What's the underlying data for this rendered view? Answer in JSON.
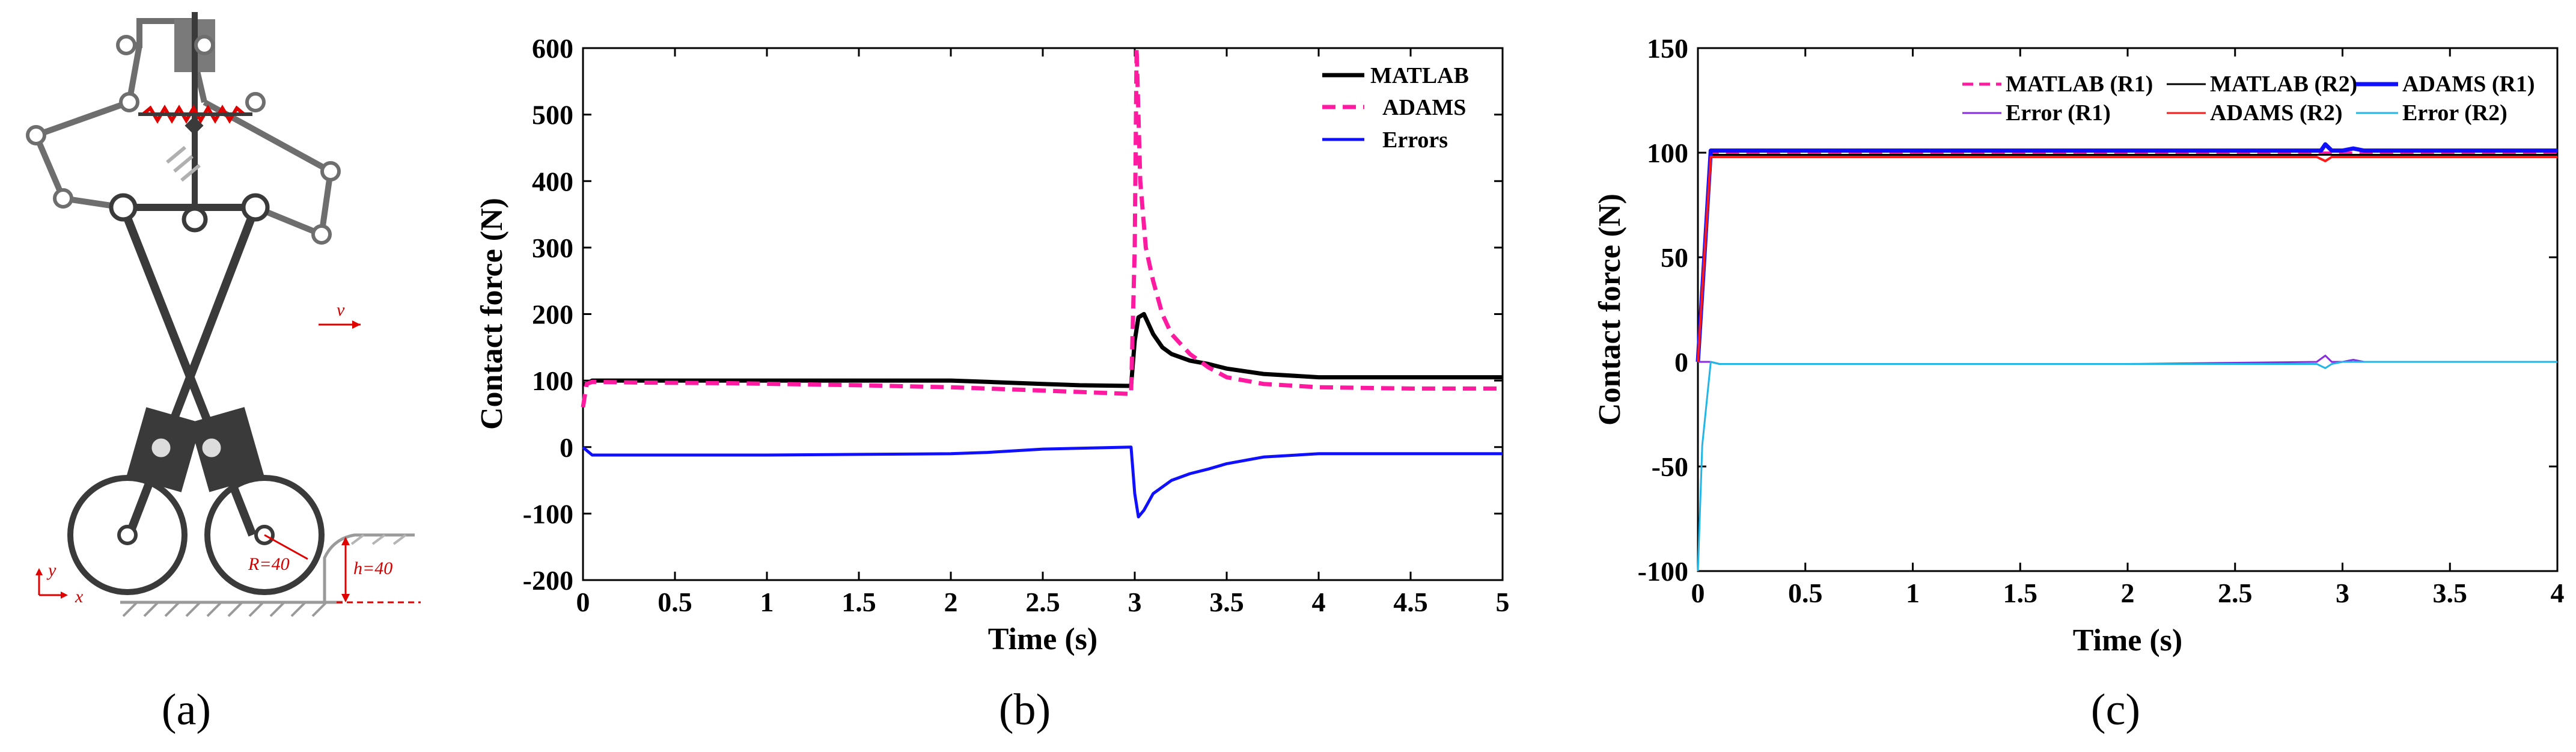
{
  "panels": {
    "a": {
      "label": "(a)",
      "velocity_label": "v",
      "radius_label": "R=40",
      "height_label": "h=40",
      "axis_y_label": "y",
      "axis_x_label": "x"
    }
  },
  "chart_data": [
    {
      "id": "b",
      "panel_label": "(b)",
      "type": "line",
      "xlabel": "Time (s)",
      "ylabel": "Contact force (N)",
      "xlim": [
        0,
        5
      ],
      "ylim": [
        -200,
        600
      ],
      "xticks": [
        0,
        0.5,
        1,
        1.5,
        2,
        2.5,
        3,
        3.5,
        4,
        4.5,
        5
      ],
      "xtick_labels": [
        "0",
        "0.5",
        "1",
        "1.5",
        "2",
        "2.5",
        "3",
        "3.5",
        "4",
        "4.5",
        "5"
      ],
      "yticks": [
        -200,
        -100,
        0,
        100,
        200,
        300,
        400,
        500,
        600
      ],
      "ytick_labels": [
        "-200",
        "-100",
        "0",
        "100",
        "200",
        "300",
        "400",
        "500",
        "600"
      ],
      "grid": false,
      "legend_position": "top-right",
      "series": [
        {
          "name": "MATLAB",
          "color": "#000000",
          "dash": "solid",
          "width": 7,
          "x": [
            0,
            0.02,
            0.05,
            0.3,
            0.8,
            1.5,
            2.0,
            2.2,
            2.5,
            2.7,
            2.98,
            3.0,
            3.02,
            3.05,
            3.1,
            3.15,
            3.2,
            3.3,
            3.4,
            3.5,
            3.7,
            4.0,
            4.5,
            5.0
          ],
          "y": [
            95,
            95,
            100,
            100,
            100,
            100,
            100,
            98,
            95,
            93,
            92,
            160,
            195,
            200,
            170,
            150,
            140,
            130,
            125,
            118,
            110,
            105,
            105,
            105
          ]
        },
        {
          "name": "ADAMS",
          "color": "#ff1aa0",
          "dash": "dashed",
          "width": 7,
          "x": [
            0,
            0.02,
            0.05,
            0.3,
            0.8,
            1.5,
            2.0,
            2.5,
            2.98,
            3.0,
            3.01,
            3.03,
            3.06,
            3.1,
            3.15,
            3.2,
            3.3,
            3.4,
            3.5,
            3.7,
            4.0,
            4.5,
            5.0
          ],
          "y": [
            60,
            95,
            98,
            97,
            96,
            93,
            90,
            85,
            80,
            300,
            600,
            400,
            300,
            250,
            200,
            170,
            140,
            120,
            105,
            95,
            90,
            88,
            88
          ]
        },
        {
          "name": "Errors",
          "color": "#1010ff",
          "dash": "solid",
          "width": 5,
          "x": [
            0,
            0.02,
            0.05,
            0.5,
            1.0,
            1.5,
            2.0,
            2.2,
            2.5,
            2.98,
            3.0,
            3.02,
            3.05,
            3.1,
            3.15,
            3.2,
            3.3,
            3.4,
            3.5,
            3.7,
            4.0,
            4.5,
            5.0
          ],
          "y": [
            0,
            -5,
            -12,
            -12,
            -12,
            -11,
            -10,
            -8,
            -3,
            0,
            -70,
            -105,
            -95,
            -70,
            -60,
            -50,
            -40,
            -33,
            -25,
            -15,
            -10,
            -10,
            -10
          ]
        }
      ]
    },
    {
      "id": "c",
      "panel_label": "(c)",
      "type": "line",
      "xlabel": "Time (s)",
      "ylabel": "Contact force (N)",
      "xlim": [
        0,
        4
      ],
      "ylim": [
        -100,
        150
      ],
      "xticks": [
        0,
        0.5,
        1,
        1.5,
        2,
        2.5,
        3,
        3.5,
        4
      ],
      "xtick_labels": [
        "0",
        "0.5",
        "1",
        "1.5",
        "2",
        "2.5",
        "3",
        "3.5",
        "4"
      ],
      "yticks": [
        -100,
        -50,
        0,
        50,
        100,
        150
      ],
      "ytick_labels": [
        "-100",
        "-50",
        "0",
        "50",
        "100",
        "150"
      ],
      "grid": false,
      "legend_position": "top-right",
      "series": [
        {
          "name": "MATLAB (R1)",
          "color": "#ff1aa0",
          "dash": "dashed",
          "width": 4,
          "x": [
            0,
            0.03,
            0.06,
            0.1,
            1.0,
            2.0,
            2.9,
            3.0,
            3.1,
            4.0
          ],
          "y": [
            0,
            50,
            100,
            100,
            100,
            100,
            100,
            100,
            100,
            100
          ]
        },
        {
          "name": "MATLAB (R2)",
          "color": "#000000",
          "dash": "solid",
          "width": 3,
          "x": [
            0,
            0.03,
            0.06,
            0.1,
            1.0,
            2.0,
            3.0,
            4.0
          ],
          "y": [
            0,
            50,
            99,
            99,
            99,
            99,
            99,
            99
          ]
        },
        {
          "name": "ADAMS (R1)",
          "color": "#1010ff",
          "dash": "solid",
          "width": 7,
          "x": [
            0,
            0.03,
            0.06,
            0.1,
            1.0,
            2.0,
            2.9,
            2.92,
            2.95,
            3.0,
            3.05,
            3.1,
            4.0
          ],
          "y": [
            0,
            50,
            101,
            101,
            101,
            101,
            101,
            104,
            101,
            101,
            102,
            101,
            101
          ]
        },
        {
          "name": "Error (R1)",
          "color": "#8a2be2",
          "dash": "solid",
          "width": 3,
          "x": [
            0,
            0.06,
            0.1,
            1.0,
            2.0,
            2.88,
            2.92,
            2.95,
            3.0,
            3.05,
            3.1,
            4.0
          ],
          "y": [
            0,
            0,
            -1,
            -1,
            -1,
            0,
            3,
            0,
            0,
            1,
            0,
            0
          ]
        },
        {
          "name": "ADAMS (R2)",
          "color": "#ff1a1a",
          "dash": "solid",
          "width": 4,
          "x": [
            0,
            0.03,
            0.06,
            0.1,
            1.0,
            1.7,
            2.0,
            2.88,
            2.92,
            2.95,
            3.0,
            4.0
          ],
          "y": [
            0,
            50,
            98,
            98,
            98,
            98,
            98,
            98,
            96,
            98,
            98,
            98
          ]
        },
        {
          "name": "Error (R2)",
          "color": "#21b6e6",
          "dash": "solid",
          "width": 3,
          "x": [
            0,
            0.02,
            0.06,
            0.1,
            1.0,
            2.0,
            2.88,
            2.92,
            2.95,
            3.0,
            4.0
          ],
          "y": [
            -100,
            -40,
            0,
            -1,
            -1,
            -1,
            -1,
            -3,
            -1,
            0,
            0
          ]
        }
      ]
    }
  ]
}
